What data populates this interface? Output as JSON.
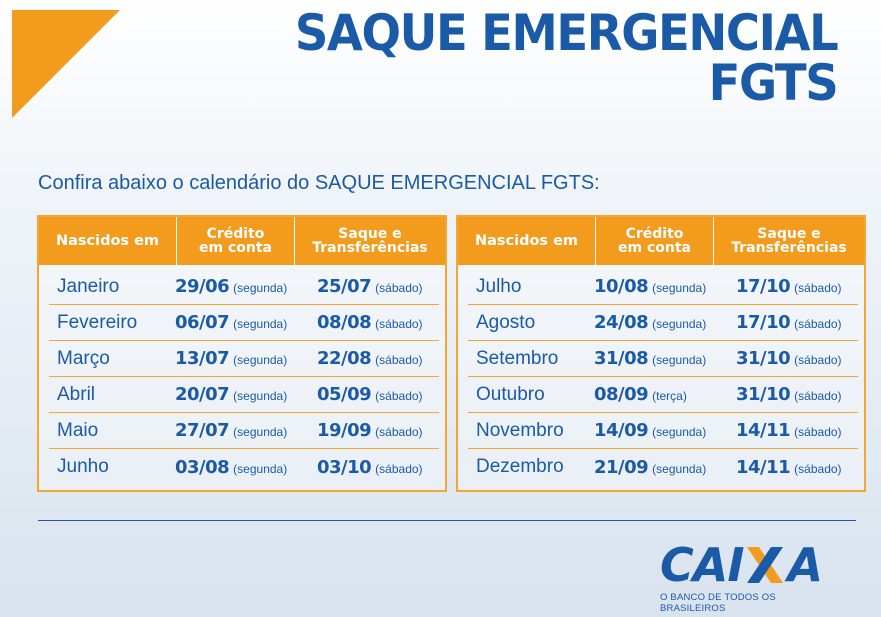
{
  "title": {
    "line1": "SAQUE EMERGENCIAL",
    "line2": "FGTS"
  },
  "subtitle": "Confira abaixo o calendário do SAQUE EMERGENCIAL FGTS:",
  "columns": {
    "born": "Nascidos em",
    "credit": "Crédito\nem conta",
    "withdraw": "Saque e\nTransferências"
  },
  "left_table": [
    {
      "month": "Janeiro",
      "credit": "29/06",
      "credit_day": "(segunda)",
      "withdraw": "25/07",
      "withdraw_day": "(sábado)"
    },
    {
      "month": "Fevereiro",
      "credit": "06/07",
      "credit_day": "(segunda)",
      "withdraw": "08/08",
      "withdraw_day": "(sábado)"
    },
    {
      "month": "Março",
      "credit": "13/07",
      "credit_day": "(segunda)",
      "withdraw": "22/08",
      "withdraw_day": "(sábado)"
    },
    {
      "month": "Abril",
      "credit": "20/07",
      "credit_day": "(segunda)",
      "withdraw": "05/09",
      "withdraw_day": "(sábado)"
    },
    {
      "month": "Maio",
      "credit": "27/07",
      "credit_day": "(segunda)",
      "withdraw": "19/09",
      "withdraw_day": "(sábado)"
    },
    {
      "month": "Junho",
      "credit": "03/08",
      "credit_day": "(segunda)",
      "withdraw": "03/10",
      "withdraw_day": "(sábado)"
    }
  ],
  "right_table": [
    {
      "month": "Julho",
      "credit": "10/08",
      "credit_day": "(segunda)",
      "withdraw": "17/10",
      "withdraw_day": "(sábado)"
    },
    {
      "month": "Agosto",
      "credit": "24/08",
      "credit_day": "(segunda)",
      "withdraw": "17/10",
      "withdraw_day": "(sábado)"
    },
    {
      "month": "Setembro",
      "credit": "31/08",
      "credit_day": "(segunda)",
      "withdraw": "31/10",
      "withdraw_day": "(sábado)"
    },
    {
      "month": "Outubro",
      "credit": "08/09",
      "credit_day": "(terça)",
      "withdraw": "31/10",
      "withdraw_day": "(sábado)"
    },
    {
      "month": "Novembro",
      "credit": "14/09",
      "credit_day": "(segunda)",
      "withdraw": "14/11",
      "withdraw_day": "(sábado)"
    },
    {
      "month": "Dezembro",
      "credit": "21/09",
      "credit_day": "(segunda)",
      "withdraw": "14/11",
      "withdraw_day": "(sábado)"
    }
  ],
  "logo": {
    "word_left": "CAI",
    "word_right": "A",
    "tagline": "O BANCO DE TODOS OS BRASILEIROS"
  },
  "colors": {
    "brand_blue": "#1b5aa6",
    "accent_orange": "#f29b1d"
  }
}
